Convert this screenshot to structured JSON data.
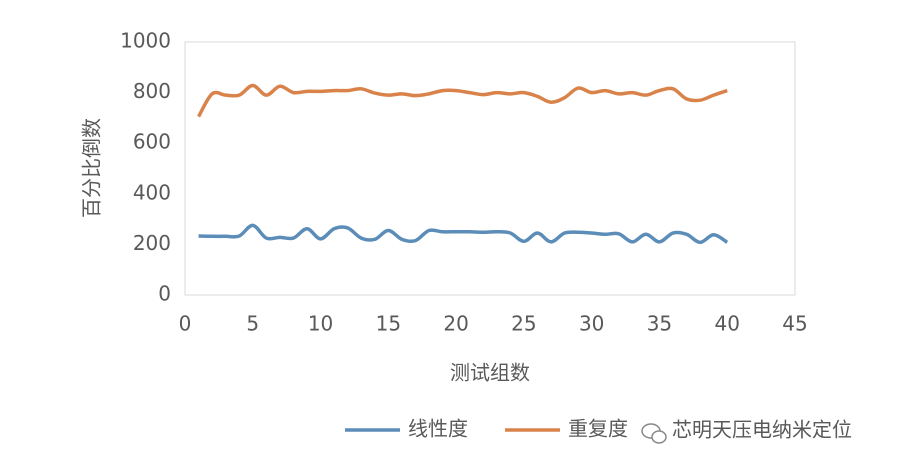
{
  "chart_data": {
    "type": "line",
    "x": [
      1,
      2,
      3,
      4,
      5,
      6,
      7,
      8,
      9,
      10,
      11,
      12,
      13,
      14,
      15,
      16,
      17,
      18,
      19,
      20,
      21,
      22,
      23,
      24,
      25,
      26,
      27,
      28,
      29,
      30,
      31,
      32,
      33,
      34,
      35,
      36,
      37,
      38,
      39,
      40
    ],
    "series": [
      {
        "name": "线性度",
        "color": "#5b8db8",
        "values": [
          233,
          232,
          232,
          233,
          275,
          225,
          228,
          225,
          262,
          222,
          262,
          265,
          225,
          220,
          255,
          220,
          215,
          255,
          250,
          250,
          250,
          248,
          250,
          245,
          212,
          245,
          210,
          245,
          248,
          245,
          240,
          242,
          210,
          240,
          210,
          245,
          240,
          208,
          238,
          208
        ]
      },
      {
        "name": "重复度",
        "color": "#d9824a",
        "values": [
          705,
          795,
          790,
          790,
          828,
          790,
          825,
          800,
          805,
          805,
          808,
          808,
          815,
          798,
          790,
          795,
          788,
          795,
          808,
          808,
          800,
          792,
          800,
          795,
          800,
          785,
          762,
          780,
          818,
          800,
          808,
          795,
          800,
          790,
          808,
          815,
          775,
          770,
          790,
          808
        ]
      }
    ],
    "xlabel": "测试组数",
    "ylabel": "百分比倒数",
    "xlim": [
      0,
      45
    ],
    "xticks": [
      0,
      5,
      10,
      15,
      20,
      25,
      30,
      35,
      40,
      45
    ],
    "ylim": [
      0,
      1000
    ],
    "yticks": [
      0,
      200,
      400,
      600,
      800,
      1000
    ],
    "grid": false,
    "legend": "bottom",
    "source": "芯明天压电纳米定位"
  }
}
